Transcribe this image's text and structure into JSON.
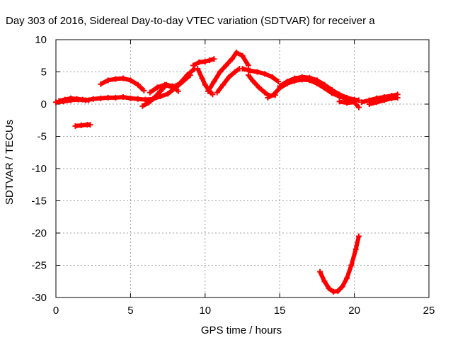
{
  "chart_data": {
    "type": "line",
    "title": "Day 303 of 2016, Sidereal Day-to-day VTEC variation (SDTVAR) for receiver a",
    "xlabel": "GPS time / hours",
    "ylabel": "SDTVAR / TECUs",
    "xlim": [
      0,
      25
    ],
    "ylim": [
      -30,
      10
    ],
    "xticks": [
      0,
      5,
      10,
      15,
      20,
      25
    ],
    "yticks": [
      10,
      5,
      0,
      -5,
      -10,
      -15,
      -20,
      -25,
      -30
    ],
    "xtick_labels": [
      "0",
      "5",
      "10",
      "15",
      "20",
      "25"
    ],
    "ytick_labels": [
      "10",
      "5",
      "0",
      "-5",
      "-10",
      "-15",
      "-20",
      "-25",
      "-30"
    ],
    "grid": true,
    "series_color": "#ff0000",
    "series": [
      {
        "x": [
          0,
          0.5,
          1.0,
          1.5,
          2.0,
          2.5,
          3.0,
          3.5,
          4.0,
          4.5,
          5.0,
          5.5,
          6.0,
          6.5,
          7.0,
          7.5,
          8.0,
          8.5,
          9.0
        ],
        "y": [
          0.3,
          0.4,
          0.6,
          0.7,
          0.6,
          0.8,
          0.9,
          1.0,
          1.0,
          1.1,
          0.9,
          0.8,
          0.7,
          0.8,
          1.2,
          1.6,
          2.5,
          3.5,
          4.5
        ]
      },
      {
        "x": [
          0.2,
          0.6,
          1.0,
          1.4,
          1.8,
          2.2
        ],
        "y": [
          0.5,
          0.7,
          0.9,
          0.8,
          0.7,
          0.6
        ]
      },
      {
        "x": [
          1.3,
          1.7,
          2.1,
          2.3
        ],
        "y": [
          -3.4,
          -3.3,
          -3.2,
          -3.2
        ]
      },
      {
        "x": [
          3.0,
          3.5,
          4.0,
          4.5,
          5.0,
          5.5,
          5.9
        ],
        "y": [
          3.1,
          3.7,
          3.9,
          4.0,
          3.7,
          3.0,
          2.1
        ]
      },
      {
        "x": [
          5.8,
          6.2,
          6.6,
          7.0,
          7.4,
          7.8,
          8.2
        ],
        "y": [
          -0.3,
          0.2,
          1.0,
          2.0,
          3.0,
          2.8,
          2.0
        ]
      },
      {
        "x": [
          6.3,
          6.8,
          7.3,
          7.8,
          8.3,
          8.8,
          9.3
        ],
        "y": [
          1.8,
          2.6,
          3.0,
          2.6,
          3.2,
          4.5,
          5.5
        ]
      },
      {
        "x": [
          9.2,
          9.6,
          10.0,
          10.3,
          10.6
        ],
        "y": [
          6.0,
          6.5,
          6.6,
          6.8,
          7.0
        ]
      },
      {
        "x": [
          9.5,
          9.8,
          10.0,
          10.3,
          10.5
        ],
        "y": [
          5.5,
          4.0,
          3.0,
          2.0,
          1.5
        ]
      },
      {
        "x": [
          10.2,
          10.6,
          11.0,
          11.4,
          11.8,
          12.1,
          12.5,
          12.9
        ],
        "y": [
          2.0,
          3.5,
          5.0,
          6.0,
          7.0,
          8.0,
          7.5,
          6.0
        ]
      },
      {
        "x": [
          10.8,
          11.2,
          11.6,
          12.0,
          12.3
        ],
        "y": [
          1.8,
          3.0,
          4.2,
          5.0,
          5.5
        ]
      },
      {
        "x": [
          12.5,
          13.0,
          13.5,
          14.0,
          14.5,
          14.9
        ],
        "y": [
          5.5,
          5.2,
          5.0,
          4.7,
          4.2,
          3.5
        ]
      },
      {
        "x": [
          12.9,
          13.2,
          13.6,
          14.0,
          14.3,
          14.7
        ],
        "y": [
          4.5,
          3.6,
          2.6,
          1.8,
          1.3,
          1.4
        ]
      },
      {
        "x": [
          14.2,
          14.6,
          15.0,
          15.5,
          16.0,
          16.5,
          17.0,
          17.5,
          18.0,
          18.5,
          19.0,
          19.5,
          20.0
        ],
        "y": [
          1.0,
          1.5,
          2.5,
          3.2,
          3.6,
          3.8,
          3.7,
          3.2,
          2.5,
          1.7,
          1.2,
          0.8,
          0.5
        ]
      },
      {
        "x": [
          15.0,
          15.5,
          16.0,
          16.5,
          17.0,
          17.5,
          18.0,
          18.5,
          19.0,
          19.5,
          20.0,
          20.3
        ],
        "y": [
          2.8,
          3.5,
          4.0,
          4.2,
          4.1,
          3.7,
          3.0,
          2.2,
          1.5,
          1.0,
          0.7,
          0.6
        ]
      },
      {
        "x": [
          19.0,
          19.5,
          20.0,
          20.3
        ],
        "y": [
          0.4,
          0.2,
          0.3,
          -0.5
        ]
      },
      {
        "x": [
          20.5,
          21.0,
          21.5,
          22.0,
          22.5,
          22.9
        ],
        "y": [
          0.3,
          0.6,
          0.9,
          1.1,
          1.3,
          1.5
        ]
      },
      {
        "x": [
          21.0,
          21.5,
          22.0,
          22.5,
          22.9
        ],
        "y": [
          0.0,
          0.3,
          0.6,
          0.9,
          1.0
        ]
      },
      {
        "x": [
          17.7,
          18.0,
          18.3,
          18.6,
          18.9,
          19.2,
          19.5,
          19.8,
          20.1,
          20.3
        ],
        "y": [
          -26.0,
          -27.5,
          -28.6,
          -29.1,
          -29.0,
          -28.3,
          -27.0,
          -25.0,
          -22.5,
          -20.5
        ]
      }
    ]
  }
}
